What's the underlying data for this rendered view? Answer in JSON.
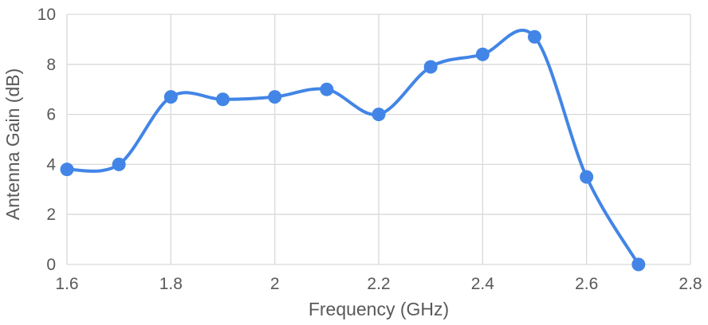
{
  "chart_data": {
    "type": "line",
    "title": "",
    "xlabel": "Frequency (GHz)",
    "ylabel": "Antenna Gain (dB)",
    "xlim": [
      1.6,
      2.8
    ],
    "ylim": [
      0,
      10
    ],
    "x_ticks": [
      "1.6",
      "1.8",
      "2",
      "2.2",
      "2.4",
      "2.6",
      "2.8"
    ],
    "y_ticks": [
      "0",
      "2",
      "4",
      "6",
      "8",
      "10"
    ],
    "grid": true,
    "smooth": true,
    "legend": "none",
    "series": [
      {
        "color": "#4285e6",
        "x": [
          1.6,
          1.7,
          1.8,
          1.9,
          2.0,
          2.1,
          2.2,
          2.3,
          2.4,
          2.5,
          2.6,
          2.7
        ],
        "y": [
          3.8,
          4.0,
          6.7,
          6.6,
          6.7,
          7.0,
          6.0,
          7.9,
          8.4,
          9.1,
          3.5,
          0.0
        ]
      }
    ]
  }
}
